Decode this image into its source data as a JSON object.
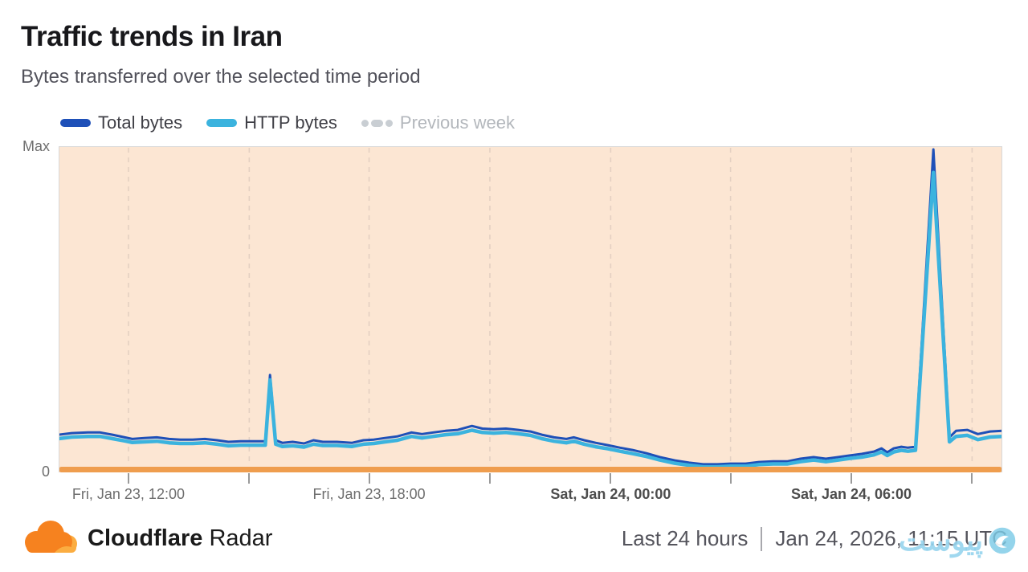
{
  "header": {
    "title": "Traffic trends in Iran",
    "subtitle": "Bytes transferred over the selected time period"
  },
  "legend": {
    "items": [
      {
        "label": "Total bytes",
        "color": "#1e50b8",
        "style": "solid",
        "disabled": false
      },
      {
        "label": "HTTP bytes",
        "color": "#3bb3de",
        "style": "solid",
        "disabled": false
      },
      {
        "label": "Previous week",
        "color": "#c9ced3",
        "style": "dotted",
        "disabled": true
      }
    ]
  },
  "chart_data": {
    "type": "line",
    "title": "Traffic trends in Iran",
    "ylabel": "Bytes transferred",
    "y_axis": {
      "max_label": "Max",
      "min_label": "0",
      "range": [
        0,
        1
      ],
      "note": "series values are fractions of Max"
    },
    "colors": {
      "background": "#fce6d3",
      "gridline": "#e4d0c2",
      "baseline_bar": "#ef9d4e",
      "border": "#d8d8d8",
      "total": "#1e50b8",
      "http": "#3bb3de"
    },
    "x_gridlines": [
      {
        "pos": 0.074,
        "label": "Fri, Jan 23, 12:00",
        "bold": false,
        "show_label": true
      },
      {
        "pos": 0.202,
        "label": "",
        "bold": false,
        "show_label": false
      },
      {
        "pos": 0.329,
        "label": "Fri, Jan 23, 18:00",
        "bold": false,
        "show_label": true
      },
      {
        "pos": 0.457,
        "label": "",
        "bold": false,
        "show_label": false
      },
      {
        "pos": 0.585,
        "label": "Sat, Jan 24, 00:00",
        "bold": true,
        "show_label": true
      },
      {
        "pos": 0.712,
        "label": "",
        "bold": false,
        "show_label": false
      },
      {
        "pos": 0.84,
        "label": "Sat, Jan 24, 06:00",
        "bold": true,
        "show_label": true
      },
      {
        "pos": 0.968,
        "label": "",
        "bold": false,
        "show_label": false
      }
    ],
    "series": [
      {
        "name": "Total bytes",
        "key": "total",
        "color": "#1e50b8",
        "stroke_width": 3
      },
      {
        "name": "HTTP bytes",
        "key": "http",
        "color": "#3bb3de",
        "stroke_width": 4.5
      }
    ],
    "points": [
      [
        0.0,
        0.116,
        0.104
      ],
      [
        0.014,
        0.121,
        0.109
      ],
      [
        0.031,
        0.123,
        0.111
      ],
      [
        0.044,
        0.123,
        0.111
      ],
      [
        0.057,
        0.116,
        0.104
      ],
      [
        0.07,
        0.108,
        0.097
      ],
      [
        0.078,
        0.103,
        0.092
      ],
      [
        0.091,
        0.106,
        0.094
      ],
      [
        0.104,
        0.108,
        0.096
      ],
      [
        0.117,
        0.103,
        0.091
      ],
      [
        0.129,
        0.101,
        0.089
      ],
      [
        0.142,
        0.101,
        0.089
      ],
      [
        0.155,
        0.103,
        0.091
      ],
      [
        0.168,
        0.099,
        0.087
      ],
      [
        0.18,
        0.094,
        0.082
      ],
      [
        0.193,
        0.096,
        0.084
      ],
      [
        0.206,
        0.096,
        0.084
      ],
      [
        0.219,
        0.096,
        0.084
      ],
      [
        0.224,
        0.3,
        0.285
      ],
      [
        0.23,
        0.099,
        0.087
      ],
      [
        0.237,
        0.091,
        0.08
      ],
      [
        0.248,
        0.094,
        0.082
      ],
      [
        0.26,
        0.089,
        0.078
      ],
      [
        0.27,
        0.099,
        0.087
      ],
      [
        0.28,
        0.094,
        0.083
      ],
      [
        0.295,
        0.094,
        0.083
      ],
      [
        0.311,
        0.091,
        0.08
      ],
      [
        0.323,
        0.099,
        0.087
      ],
      [
        0.334,
        0.101,
        0.089
      ],
      [
        0.346,
        0.106,
        0.094
      ],
      [
        0.359,
        0.111,
        0.099
      ],
      [
        0.374,
        0.123,
        0.111
      ],
      [
        0.385,
        0.118,
        0.106
      ],
      [
        0.397,
        0.123,
        0.111
      ],
      [
        0.41,
        0.128,
        0.116
      ],
      [
        0.423,
        0.131,
        0.119
      ],
      [
        0.438,
        0.143,
        0.13
      ],
      [
        0.449,
        0.135,
        0.123
      ],
      [
        0.461,
        0.133,
        0.121
      ],
      [
        0.474,
        0.135,
        0.123
      ],
      [
        0.487,
        0.131,
        0.119
      ],
      [
        0.5,
        0.126,
        0.114
      ],
      [
        0.512,
        0.116,
        0.104
      ],
      [
        0.525,
        0.108,
        0.096
      ],
      [
        0.538,
        0.103,
        0.091
      ],
      [
        0.546,
        0.108,
        0.096
      ],
      [
        0.557,
        0.099,
        0.087
      ],
      [
        0.569,
        0.091,
        0.079
      ],
      [
        0.582,
        0.084,
        0.073
      ],
      [
        0.595,
        0.076,
        0.065
      ],
      [
        0.608,
        0.069,
        0.058
      ],
      [
        0.623,
        0.059,
        0.049
      ],
      [
        0.637,
        0.047,
        0.038
      ],
      [
        0.653,
        0.037,
        0.028
      ],
      [
        0.668,
        0.03,
        0.022
      ],
      [
        0.683,
        0.025,
        0.017
      ],
      [
        0.698,
        0.025,
        0.017
      ],
      [
        0.712,
        0.027,
        0.019
      ],
      [
        0.728,
        0.027,
        0.019
      ],
      [
        0.742,
        0.032,
        0.024
      ],
      [
        0.757,
        0.034,
        0.026
      ],
      [
        0.772,
        0.034,
        0.026
      ],
      [
        0.786,
        0.042,
        0.033
      ],
      [
        0.8,
        0.047,
        0.038
      ],
      [
        0.813,
        0.042,
        0.033
      ],
      [
        0.826,
        0.047,
        0.038
      ],
      [
        0.838,
        0.052,
        0.043
      ],
      [
        0.851,
        0.057,
        0.047
      ],
      [
        0.864,
        0.064,
        0.054
      ],
      [
        0.872,
        0.074,
        0.063
      ],
      [
        0.878,
        0.062,
        0.052
      ],
      [
        0.885,
        0.074,
        0.063
      ],
      [
        0.893,
        0.079,
        0.068
      ],
      [
        0.9,
        0.076,
        0.065
      ],
      [
        0.908,
        0.079,
        0.068
      ],
      [
        0.927,
        0.995,
        0.924
      ],
      [
        0.944,
        0.108,
        0.094
      ],
      [
        0.951,
        0.128,
        0.111
      ],
      [
        0.963,
        0.131,
        0.114
      ],
      [
        0.974,
        0.118,
        0.101
      ],
      [
        0.987,
        0.126,
        0.109
      ],
      [
        1.0,
        0.128,
        0.111
      ]
    ]
  },
  "footer": {
    "brand_bold": "Cloudflare",
    "brand_regular": "Radar",
    "time_range": "Last 24 hours",
    "timestamp": "Jan 24, 2026, 11:15 UTC",
    "watermark_text": "پیوست"
  }
}
